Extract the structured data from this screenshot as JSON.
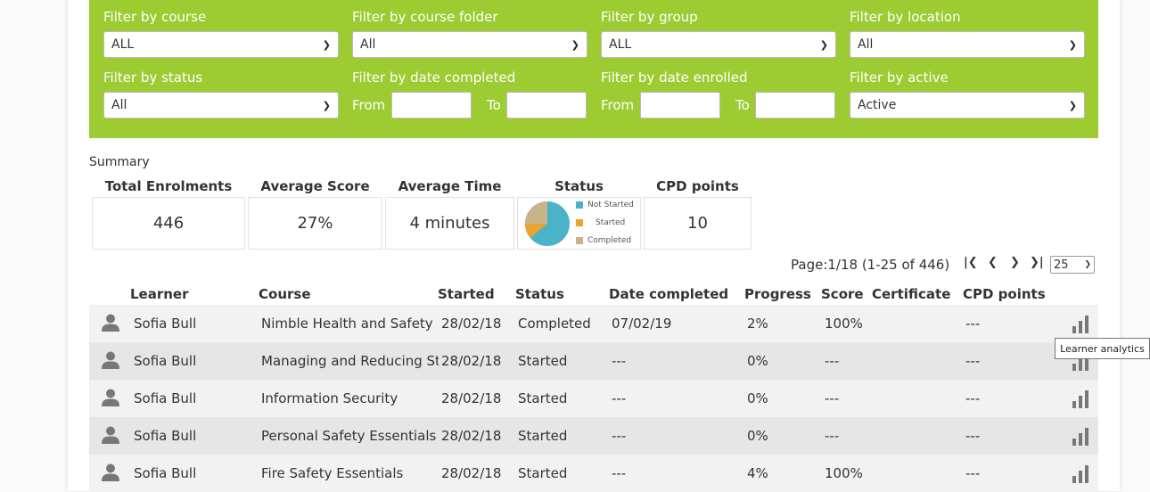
{
  "filters": {
    "course": {
      "label": "Filter by course",
      "value": "ALL"
    },
    "folder": {
      "label": "Filter by course folder",
      "value": "All"
    },
    "group": {
      "label": "Filter by group",
      "value": "ALL"
    },
    "location": {
      "label": "Filter by location",
      "value": "All"
    },
    "status": {
      "label": "Filter by status",
      "value": "All"
    },
    "date_completed": {
      "label": "Filter by date completed",
      "from": "From",
      "to": "To"
    },
    "date_enrolled": {
      "label": "Filter by date enrolled",
      "from": "From",
      "to": "To"
    },
    "active": {
      "label": "Filter by active",
      "value": "Active"
    }
  },
  "summary": {
    "title": "Summary",
    "total_label": "Total Enrolments",
    "total_value": "446",
    "avg_score_label": "Average Score",
    "avg_score_value": "27%",
    "avg_time_label": "Average Time",
    "avg_time_value": "4 minutes",
    "status_label": "Status",
    "cpd_label": "CPD points",
    "cpd_value": "10",
    "status_legend": [
      {
        "label": "Not Started",
        "color": "#4bb3c8"
      },
      {
        "label": "Started",
        "color": "#e9a331"
      },
      {
        "label": "Completed",
        "color": "#c9b38a"
      }
    ]
  },
  "pagination": {
    "text": "Page:1/18 (1-25 of 446)",
    "per_page": "25"
  },
  "table": {
    "headers": {
      "learner": "Learner",
      "course": "Course",
      "started": "Started",
      "status": "Status",
      "date_completed": "Date completed",
      "progress": "Progress",
      "score": "Score",
      "certificate": "Certificate",
      "cpd": "CPD points"
    },
    "rows": [
      {
        "learner": "Sofia Bull",
        "course": "Nimble Health and Safety",
        "started": "28/02/18",
        "status": "Completed",
        "date_completed": "07/02/19",
        "progress": "2%",
        "score": "100%",
        "cpd": "---"
      },
      {
        "learner": "Sofia Bull",
        "course": "Managing and Reducing Stress",
        "started": "28/02/18",
        "status": "Started",
        "date_completed": "---",
        "progress": "0%",
        "score": "---",
        "cpd": "---"
      },
      {
        "learner": "Sofia Bull",
        "course": "Information Security",
        "started": "28/02/18",
        "status": "Started",
        "date_completed": "---",
        "progress": "0%",
        "score": "---",
        "cpd": "---"
      },
      {
        "learner": "Sofia Bull",
        "course": "Personal Safety Essentials",
        "started": "28/02/18",
        "status": "Started",
        "date_completed": "---",
        "progress": "0%",
        "score": "---",
        "cpd": "---"
      },
      {
        "learner": "Sofia Bull",
        "course": "Fire Safety Essentials",
        "started": "28/02/18",
        "status": "Started",
        "date_completed": "---",
        "progress": "4%",
        "score": "100%",
        "cpd": "---"
      }
    ]
  },
  "tooltip": "Learner analytics",
  "colors": {
    "filter_bg": "#9ccc32",
    "row_odd": "#f2f2f2",
    "row_even": "#e6e6e6",
    "icon": "#777777"
  }
}
